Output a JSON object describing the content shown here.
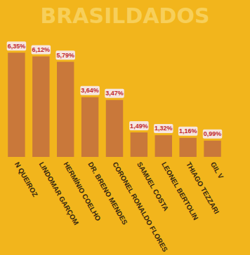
{
  "chart_data": {
    "type": "bar",
    "title": "BRASILDADOS",
    "categories": [
      "N QUEIROZ",
      "LINDOMAR GARÇOM",
      "HERMÍNIO COELHO",
      "DR. BRENO MENDES",
      "CORONEL RONALDO FLORES",
      "SAMUEL COSTA",
      "LEONEL BERTOLIN",
      "THIAGO TEZZARI",
      "GIL V"
    ],
    "values": [
      6.35,
      6.12,
      5.79,
      3.64,
      3.47,
      1.49,
      1.32,
      1.16,
      0.99
    ],
    "value_labels": [
      "6,35%",
      "6,12%",
      "5,79%",
      "3,64%",
      "3,47%",
      "1,49%",
      "1,32%",
      "1,16%",
      "0,99%"
    ],
    "color": "#c9783a",
    "ylim": [
      0,
      7
    ],
    "data_labels": true,
    "tick_labels": "x",
    "grid": false
  }
}
